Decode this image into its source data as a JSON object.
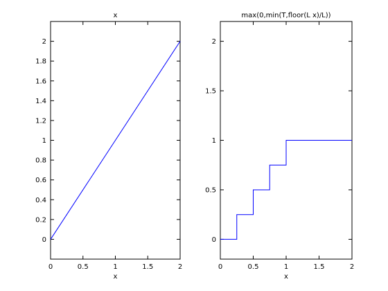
{
  "chart_data": [
    {
      "type": "line",
      "title": "x",
      "xlabel": "x",
      "ylabel": "",
      "xlim": [
        0,
        2
      ],
      "ylim": [
        -0.2,
        2.2
      ],
      "xticks": [
        0,
        0.5,
        1,
        1.5,
        2
      ],
      "xtick_labels": [
        "0",
        "0.5",
        "1",
        "1.5",
        "2"
      ],
      "yticks": [
        0,
        0.2,
        0.4,
        0.6,
        0.8,
        1,
        1.2,
        1.4,
        1.6,
        1.8,
        2
      ],
      "ytick_labels": [
        "0",
        "0.2",
        "0.4",
        "0.6",
        "0.8",
        "1",
        "1.2",
        "1.4",
        "1.6",
        "1.8",
        "2"
      ],
      "grid": false,
      "series": [
        {
          "color": "#0000ff",
          "x": [
            0,
            2
          ],
          "y": [
            0,
            2
          ]
        }
      ]
    },
    {
      "type": "line",
      "title": "max(0,min(T,floor(L x)/L))",
      "xlabel": "x",
      "ylabel": "",
      "xlim": [
        0,
        2
      ],
      "ylim": [
        -0.2,
        2.2
      ],
      "xticks": [
        0,
        0.5,
        1,
        1.5,
        2
      ],
      "xtick_labels": [
        "0",
        "0.5",
        "1",
        "1.5",
        "2"
      ],
      "yticks": [
        0,
        0.5,
        1,
        1.5,
        2
      ],
      "ytick_labels": [
        "0",
        "0.5",
        "1",
        "1.5",
        "2"
      ],
      "grid": false,
      "series": [
        {
          "color": "#0000ff",
          "x": [
            0,
            0.25,
            0.25,
            0.5,
            0.5,
            0.75,
            0.75,
            1,
            1,
            2
          ],
          "y": [
            0,
            0,
            0.25,
            0.25,
            0.5,
            0.5,
            0.75,
            0.75,
            1,
            1
          ]
        }
      ]
    }
  ]
}
